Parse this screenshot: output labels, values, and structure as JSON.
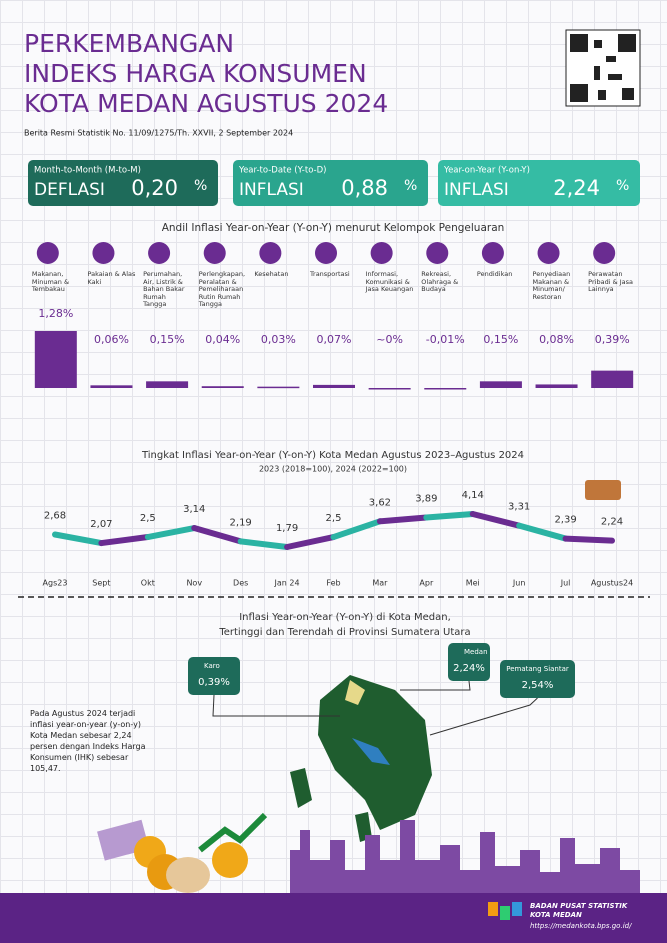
{
  "header": {
    "title_lines": [
      "PERKEMBANGAN",
      "INDEKS HARGA KONSUMEN",
      "KOTA MEDAN AGUSTUS 2024"
    ],
    "subtitle": "Berita Resmi Statistik No. 11/09/1275/Th. XXVII, 2 September 2024"
  },
  "indicators": [
    {
      "period": "Month-to-Month (M-to-M)",
      "kind": "DEFLASI",
      "value": "0,20",
      "unit": "%",
      "color": "#1e6b5a"
    },
    {
      "period": "Year-to-Date (Y-to-D)",
      "kind": "INFLASI",
      "value": "0,88",
      "unit": "%",
      "color": "#2aa58e"
    },
    {
      "period": "Year-on-Year (Y-on-Y)",
      "kind": "INFLASI",
      "value": "2,24",
      "unit": "%",
      "color": "#35bca4"
    }
  ],
  "chart_data": [
    {
      "type": "bar",
      "title": "Andil Inflasi Year-on-Year (Y-on-Y) menurut Kelompok Pengeluaran",
      "categories": [
        "Makanan, Minuman & Tembakau",
        "Pakaian & Alas Kaki",
        "Perumahan, Air, Listrik & Bahan Bakar Rumah Tangga",
        "Perlengkapan, Peralatan & Pemeliharaan Rutin Rumah Tangga",
        "Kesehatan",
        "Transportasi",
        "Informasi, Komunikasi & Jasa Keuangan",
        "Rekreasi, Olahraga & Budaya",
        "Pendidikan",
        "Penyediaan Makanan & Minuman/ Restoran",
        "Perawatan Pribadi & Jasa Lainnya"
      ],
      "values": [
        1.28,
        0.06,
        0.15,
        0.04,
        0.03,
        0.07,
        0,
        -0.01,
        0.15,
        0.08,
        0.39
      ],
      "value_labels": [
        "1,28%",
        "0,06%",
        "0,15%",
        "0,04%",
        "0,03%",
        "0,07%",
        "~0%",
        "-0,01%",
        "0,15%",
        "0,08%",
        "0,39%"
      ],
      "color": "#6a2c91"
    },
    {
      "type": "line",
      "title": "Tingkat Inflasi Year-on-Year (Y-on-Y) Kota Medan Agustus 2023–Agustus 2024",
      "subtitle": "2023 (2018=100), 2024 (2022=100)",
      "categories": [
        "Ags23",
        "Sept",
        "Okt",
        "Nov",
        "Des",
        "Jan 24",
        "Feb",
        "Mar",
        "Apr",
        "Mei",
        "Jun",
        "Jul",
        "Agustus24"
      ],
      "values": [
        2.68,
        2.07,
        2.5,
        3.14,
        2.19,
        1.79,
        2.5,
        3.62,
        3.89,
        4.14,
        3.31,
        2.39,
        2.24
      ],
      "value_labels": [
        "2,68",
        "2,07",
        "2,5",
        "3,14",
        "2,19",
        "1,79",
        "2,5",
        "3,62",
        "3,89",
        "4,14",
        "3,31",
        "2,39",
        "2,24"
      ],
      "segment_colors": [
        "#2bb3a3",
        "#6a2c91"
      ]
    }
  ],
  "map": {
    "title_lines": [
      "Inflasi Year-on-Year (Y-on-Y) di Kota Medan,",
      "Tertinggi dan Terendah di Provinsi Sumatera Utara"
    ],
    "cities": [
      {
        "name": "Karo",
        "value": "0,39%"
      },
      {
        "name": "Medan",
        "value": "2,24%"
      },
      {
        "name": "Pematang Siantar",
        "value": "2,54%"
      }
    ]
  },
  "note": "Pada Agustus 2024 terjadi inflasi year-on-year (y-on-y) Kota Medan sebesar 2,24 persen dengan Indeks Harga Konsumen (IHK) sebesar 105,47.",
  "footer": {
    "org_lines": [
      "BADAN PUSAT STATISTIK",
      "KOTA MEDAN"
    ],
    "url": "https://medankota.bps.go.id/"
  }
}
